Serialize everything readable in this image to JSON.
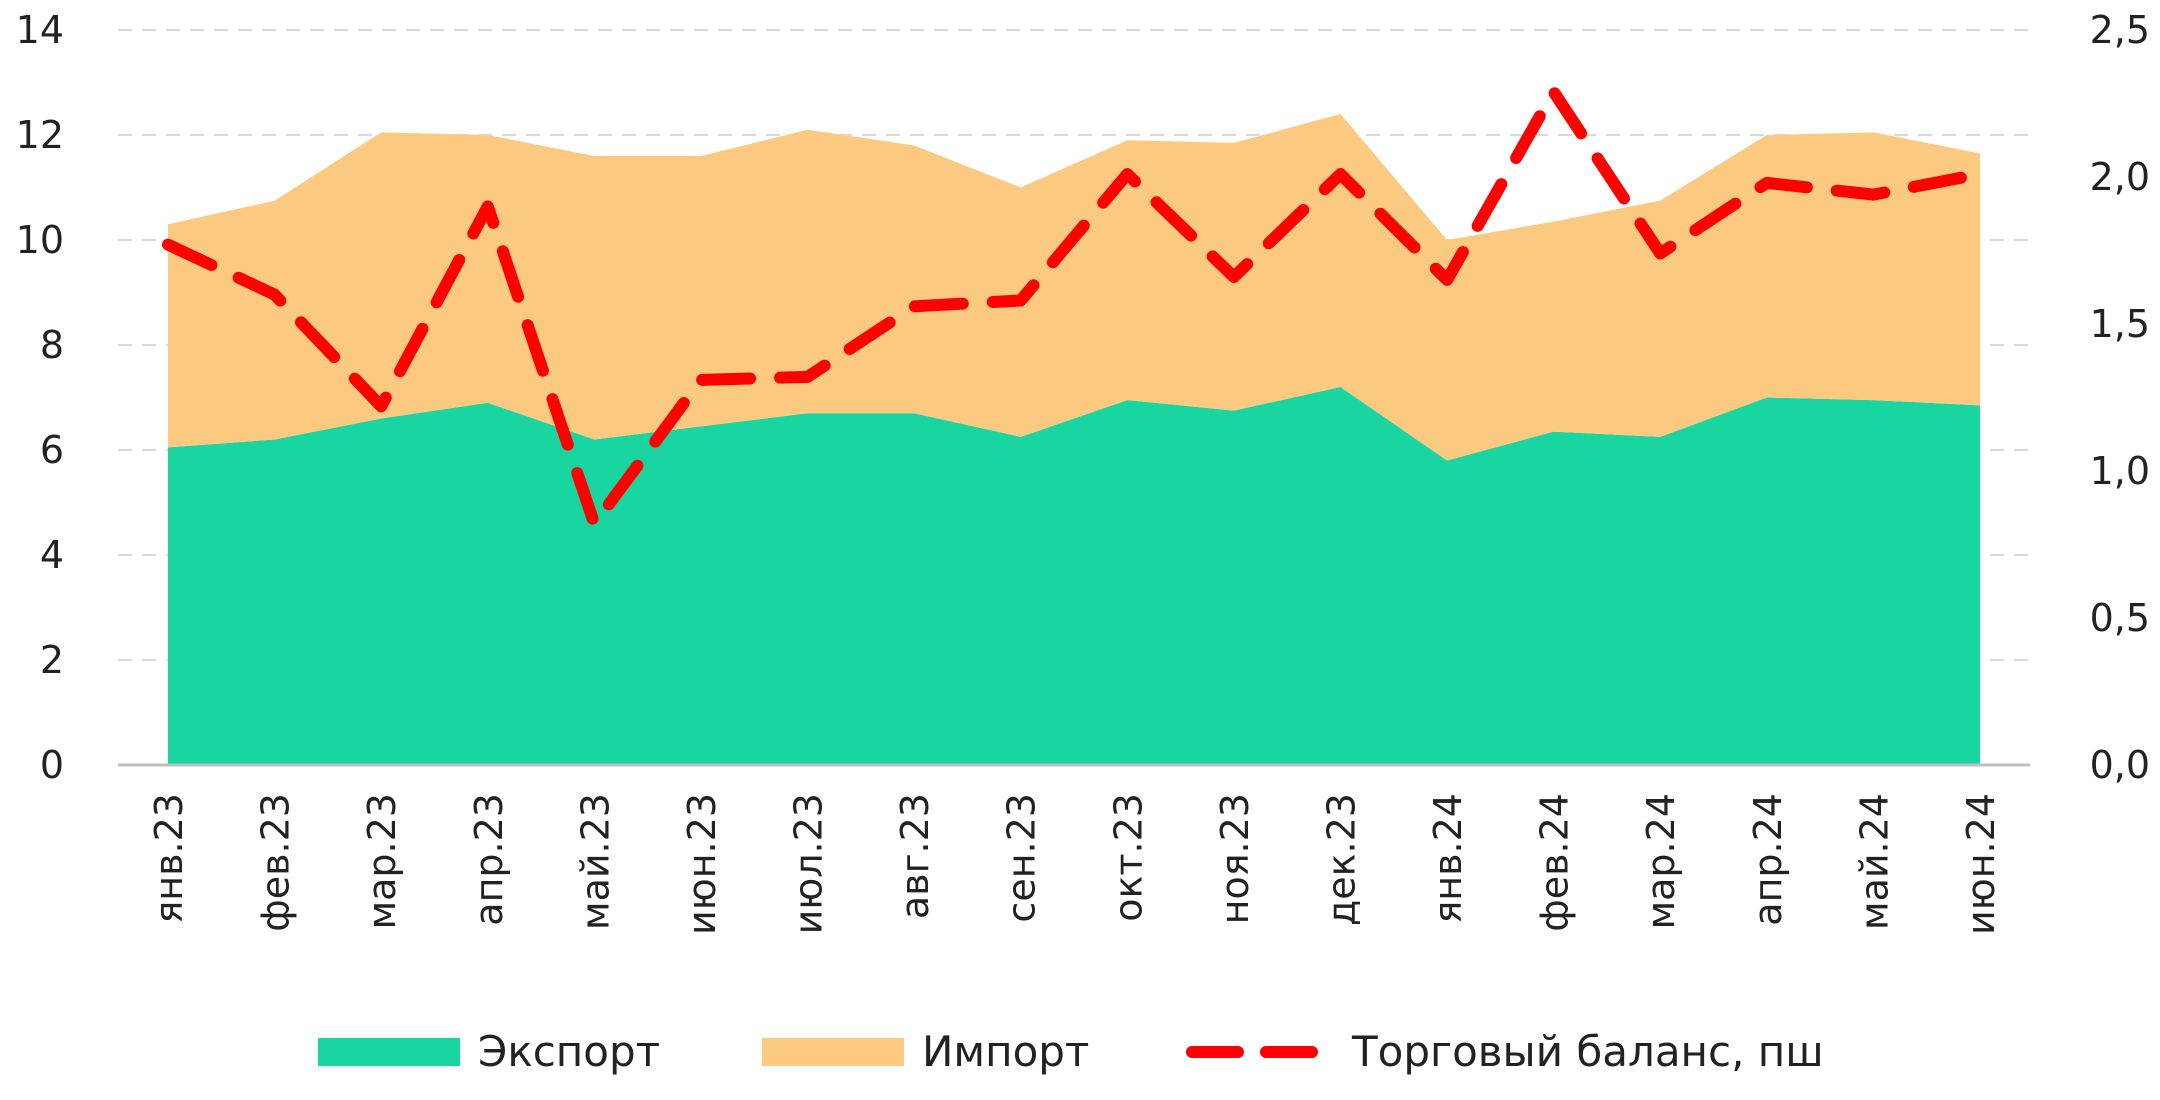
{
  "chart_data": {
    "type": "area",
    "categories": [
      "янв.23",
      "фев.23",
      "мар.23",
      "апр.23",
      "май.23",
      "июн.23",
      "июл.23",
      "авг.23",
      "сен.23",
      "окт.23",
      "ноя.23",
      "дек.23",
      "янв.24",
      "фев.24",
      "мар.24",
      "апр.24",
      "май.24",
      "июн.24"
    ],
    "series": [
      {
        "name": "Экспорт",
        "axis": "left",
        "stack": "main",
        "color": "#19d6a0",
        "values": [
          6.05,
          6.2,
          6.6,
          6.9,
          6.2,
          6.45,
          6.7,
          6.7,
          6.25,
          6.95,
          6.75,
          7.2,
          5.8,
          6.35,
          6.25,
          7.0,
          6.95,
          6.85
        ]
      },
      {
        "name": "Импорт",
        "axis": "left",
        "stack": "main",
        "color": "#fcc980",
        "values": [
          4.25,
          4.55,
          5.45,
          5.1,
          5.4,
          5.15,
          5.4,
          5.1,
          4.75,
          4.95,
          5.1,
          5.2,
          4.2,
          4.0,
          4.5,
          5.0,
          5.1,
          4.8
        ]
      },
      {
        "name": "Торговый баланс, пш",
        "axis": "right",
        "type": "line",
        "style": "dashed",
        "color": "#ff0000",
        "values": [
          1.77,
          1.6,
          1.22,
          1.9,
          0.82,
          1.31,
          1.32,
          1.56,
          1.58,
          2.01,
          1.66,
          2.01,
          1.65,
          2.29,
          1.74,
          1.98,
          1.94,
          2.01
        ]
      }
    ],
    "y_left": {
      "min": 0,
      "max": 14,
      "ticks": [
        "0",
        "2",
        "4",
        "6",
        "8",
        "10",
        "12",
        "14"
      ]
    },
    "y_right": {
      "min": 0,
      "max": 2.5,
      "ticks": [
        "0,0",
        "0,5",
        "1,0",
        "1,5",
        "2,0",
        "2,5"
      ]
    },
    "grid": "horizontal-dashed",
    "legend": "bottom"
  },
  "legend": [
    {
      "label": "Экспорт"
    },
    {
      "label": "Импорт"
    },
    {
      "label": "Торговый баланс, пш"
    }
  ]
}
